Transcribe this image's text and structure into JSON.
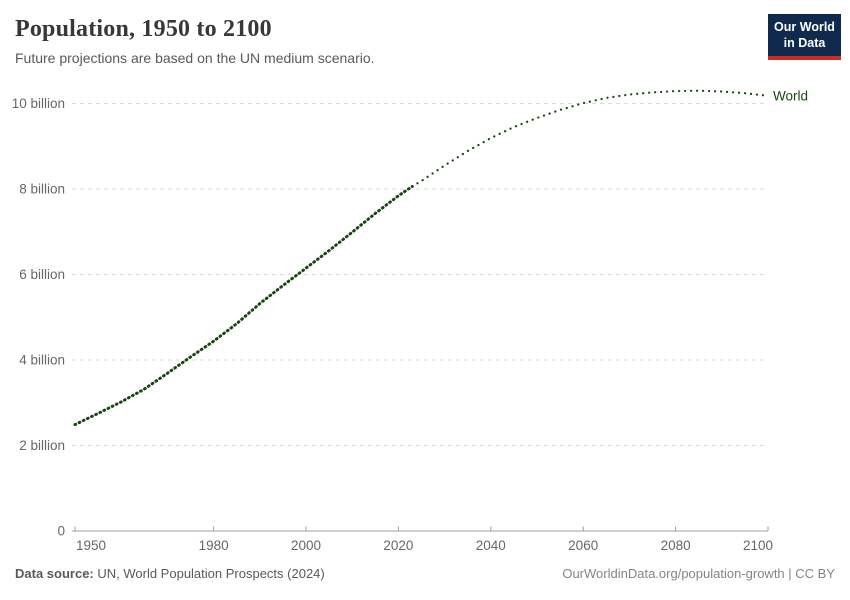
{
  "header": {
    "title": "Population, 1950 to 2100",
    "subtitle": "Future projections are based on the UN medium scenario."
  },
  "logo": {
    "line1": "Our World",
    "line2": "in Data",
    "bg_color": "#102a4d",
    "accent_color": "#cd2b27"
  },
  "chart_data": {
    "type": "line",
    "title": "Population, 1950 to 2100",
    "xlabel": "",
    "ylabel": "",
    "xlim": [
      1950,
      2100
    ],
    "ylim": [
      0,
      10.4
    ],
    "grid": "horizontal-dashed",
    "legend_position": "end-of-line-label",
    "x_ticks": [
      1950,
      1980,
      2000,
      2020,
      2040,
      2060,
      2080,
      2100
    ],
    "y_ticks": [
      {
        "value": 0,
        "label": "0"
      },
      {
        "value": 2,
        "label": "2 billion"
      },
      {
        "value": 4,
        "label": "4 billion"
      },
      {
        "value": 6,
        "label": "6 billion"
      },
      {
        "value": 8,
        "label": "8 billion"
      },
      {
        "value": 10,
        "label": "10 billion"
      }
    ],
    "grid_color": "#dadada",
    "axis_color": "#a0a0a0",
    "tick_label_color": "#676767",
    "series": [
      {
        "name": "World",
        "color": "#18470F",
        "projection_start_x": 2023,
        "x": [
          1950,
          1955,
          1960,
          1965,
          1970,
          1975,
          1980,
          1985,
          1990,
          1995,
          2000,
          2005,
          2010,
          2015,
          2020,
          2023,
          2025,
          2030,
          2035,
          2040,
          2045,
          2050,
          2055,
          2060,
          2065,
          2070,
          2075,
          2080,
          2085,
          2090,
          2095,
          2100
        ],
        "y_billions": [
          2.49,
          2.75,
          3.02,
          3.32,
          3.69,
          4.07,
          4.44,
          4.85,
          5.32,
          5.74,
          6.15,
          6.56,
          6.99,
          7.43,
          7.84,
          8.06,
          8.19,
          8.55,
          8.89,
          9.19,
          9.45,
          9.66,
          9.85,
          10.01,
          10.13,
          10.21,
          10.26,
          10.29,
          10.3,
          10.28,
          10.24,
          10.18
        ]
      }
    ]
  },
  "footer": {
    "source_label": "Data source:",
    "source_value": " UN, World Population Prospects (2024)",
    "right": "OurWorldinData.org/population-growth | CC BY"
  }
}
